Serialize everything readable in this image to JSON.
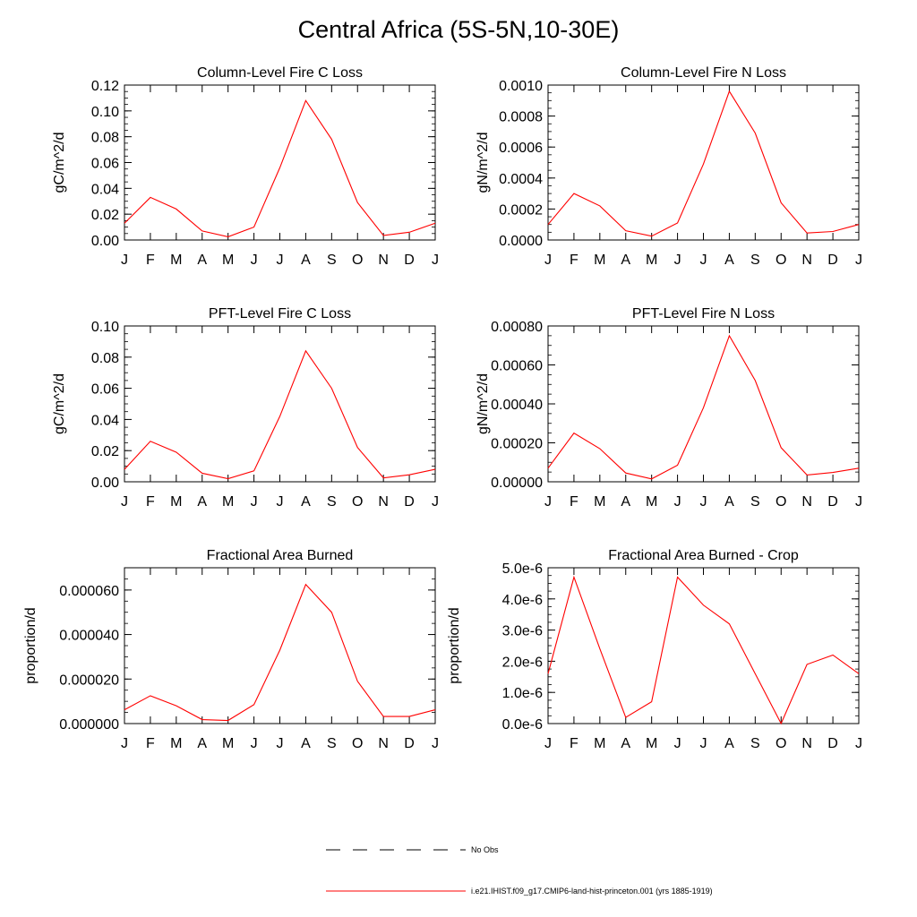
{
  "page_title": "Central Africa (5S-5N,10-30E)",
  "colors": {
    "model_line": "#ff0000",
    "obs_line": "#000000",
    "axis": "#000000"
  },
  "month_labels": [
    "J",
    "F",
    "M",
    "A",
    "M",
    "J",
    "J",
    "A",
    "S",
    "O",
    "N",
    "D",
    "J"
  ],
  "legend": {
    "obs_label": "No Obs",
    "model_label": "i.e21.IHIST.f09_g17.CMIP6-land-hist-princeton.001 (yrs 1885-1919)"
  },
  "chart_data": [
    {
      "type": "line",
      "title": "Column-Level Fire C Loss",
      "ylabel": "gC/m^2/d",
      "ylim": [
        0,
        0.12
      ],
      "yticks": [
        0,
        0.02,
        0.04,
        0.06,
        0.08,
        0.1,
        0.12
      ],
      "ytick_labels": [
        "0.00",
        "0.02",
        "0.04",
        "0.06",
        "0.08",
        "0.10",
        "0.12"
      ],
      "series": [
        {
          "values": [
            0.013,
            0.033,
            0.024,
            0.007,
            0.0025,
            0.01,
            0.056,
            0.108,
            0.078,
            0.029,
            0.0035,
            0.006,
            0.013
          ]
        }
      ]
    },
    {
      "type": "line",
      "title": "Column-Level Fire N Loss",
      "ylabel": "gN/m^2/d",
      "ylim": [
        0,
        0.001
      ],
      "yticks": [
        0,
        0.0002,
        0.0004,
        0.0006,
        0.0008,
        0.001
      ],
      "ytick_labels": [
        "0.0000",
        "0.0002",
        "0.0004",
        "0.0006",
        "0.0008",
        "0.0010"
      ],
      "series": [
        {
          "values": [
            0.0001,
            0.0003,
            0.00022,
            6e-05,
            2.5e-05,
            0.00011,
            0.00049,
            0.00096,
            0.00069,
            0.00024,
            4.5e-05,
            5.5e-05,
            0.0001
          ]
        }
      ]
    },
    {
      "type": "line",
      "title": "PFT-Level Fire C Loss",
      "ylabel": "gC/m^2/d",
      "ylim": [
        0,
        0.1
      ],
      "yticks": [
        0,
        0.02,
        0.04,
        0.06,
        0.08,
        0.1
      ],
      "ytick_labels": [
        "0.00",
        "0.02",
        "0.04",
        "0.06",
        "0.08",
        "0.10"
      ],
      "series": [
        {
          "values": [
            0.008,
            0.026,
            0.019,
            0.0055,
            0.002,
            0.007,
            0.042,
            0.084,
            0.06,
            0.022,
            0.0025,
            0.0045,
            0.008
          ]
        }
      ]
    },
    {
      "type": "line",
      "title": "PFT-Level Fire N Loss",
      "ylabel": "gN/m^2/d",
      "ylim": [
        0,
        0.0008
      ],
      "yticks": [
        0,
        0.0002,
        0.0004,
        0.0006,
        0.0008
      ],
      "ytick_labels": [
        "0.00000",
        "0.00020",
        "0.00040",
        "0.00060",
        "0.00080"
      ],
      "series": [
        {
          "values": [
            7e-05,
            0.00025,
            0.00017,
            4.5e-05,
            1.5e-05,
            8.5e-05,
            0.00038,
            0.00075,
            0.00052,
            0.000175,
            3.5e-05,
            4.8e-05,
            7e-05
          ]
        }
      ]
    },
    {
      "type": "line",
      "title": "Fractional Area Burned",
      "ylabel": "proportion/d",
      "ylim": [
        0,
        7e-05
      ],
      "yticks": [
        0,
        2e-05,
        4e-05,
        6e-05
      ],
      "ytick_labels": [
        "0.000000",
        "0.000020",
        "0.000040",
        "0.000060"
      ],
      "series": [
        {
          "values": [
            6.2e-06,
            1.25e-05,
            8e-06,
            1.8e-06,
            1.4e-06,
            8.5e-06,
            3.3e-05,
            6.25e-05,
            5e-05,
            1.9e-05,
            3.2e-06,
            3.2e-06,
            6.2e-06
          ]
        }
      ]
    },
    {
      "type": "line",
      "title": "Fractional Area Burned - Crop",
      "ylabel": "proportion/d",
      "ylim": [
        0,
        5e-06
      ],
      "yticks": [
        0,
        1e-06,
        2e-06,
        3e-06,
        4e-06,
        5e-06
      ],
      "ytick_labels": [
        "0.0e-6",
        "1.0e-6",
        "2.0e-6",
        "3.0e-6",
        "4.0e-6",
        "5.0e-6"
      ],
      "series": [
        {
          "values": [
            1.6e-06,
            4.7e-06,
            2.4e-06,
            2e-07,
            7e-07,
            4.7e-06,
            3.8e-06,
            3.2e-06,
            1.6e-06,
            0.0,
            1.9e-06,
            2.2e-06,
            1.6e-06
          ]
        }
      ]
    }
  ]
}
